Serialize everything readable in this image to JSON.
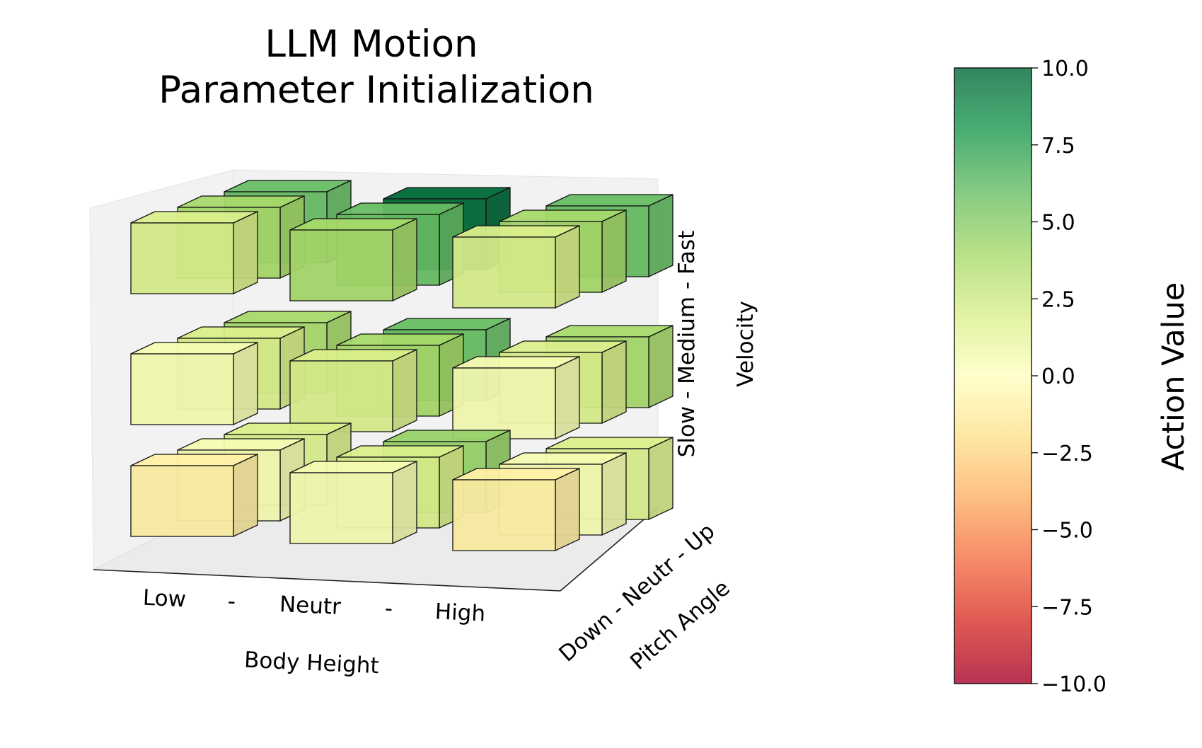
{
  "chart_data": {
    "type": "3d-bar",
    "title": [
      "LLM Motion",
      "Parameter Initialization"
    ],
    "x_axis": {
      "label": "Body Height",
      "categories": [
        "Low",
        "Neutr",
        "High"
      ],
      "separators": [
        "-",
        "-"
      ]
    },
    "y_axis": {
      "label": "Pitch Angle",
      "tick_text": "Down - Neutr - Up",
      "categories": [
        "Down",
        "Neutr",
        "Up"
      ]
    },
    "z_axis": {
      "label": "Velocity",
      "tick_text": "Slow  -  Medium  -  Fast",
      "categories": [
        "Slow",
        "Medium",
        "Fast"
      ]
    },
    "colorbar": {
      "label": "Action Value",
      "range": [
        -10,
        10
      ],
      "ticks": [
        "10.0",
        "7.5",
        "5.0",
        "2.5",
        "0.0",
        "−2.5",
        "−5.0",
        "−7.5",
        "−10.0"
      ],
      "colormap": "RdYlGn",
      "colors": [
        "#a50026",
        "#d73027",
        "#f46d43",
        "#fdae61",
        "#fee08b",
        "#ffffbf",
        "#d9ef8b",
        "#a6d96a",
        "#66bd63",
        "#1a9850",
        "#006837"
      ]
    },
    "values": [
      {
        "velocity": "Slow",
        "pitch": "Down",
        "height": "Low",
        "value": -1.0
      },
      {
        "velocity": "Slow",
        "pitch": "Down",
        "height": "Neutr",
        "value": 0.5
      },
      {
        "velocity": "Slow",
        "pitch": "Down",
        "height": "High",
        "value": -1.0
      },
      {
        "velocity": "Slow",
        "pitch": "Neutr",
        "height": "Low",
        "value": 0.5
      },
      {
        "velocity": "Slow",
        "pitch": "Neutr",
        "height": "Neutr",
        "value": 2.0
      },
      {
        "velocity": "Slow",
        "pitch": "Neutr",
        "height": "High",
        "value": 0.5
      },
      {
        "velocity": "Slow",
        "pitch": "Up",
        "height": "Low",
        "value": 2.0
      },
      {
        "velocity": "Slow",
        "pitch": "Up",
        "height": "Neutr",
        "value": 4.5
      },
      {
        "velocity": "Slow",
        "pitch": "Up",
        "height": "High",
        "value": 2.0
      },
      {
        "velocity": "Medium",
        "pitch": "Down",
        "height": "Low",
        "value": 0.5
      },
      {
        "velocity": "Medium",
        "pitch": "Down",
        "height": "Neutr",
        "value": 2.0
      },
      {
        "velocity": "Medium",
        "pitch": "Down",
        "height": "High",
        "value": 0.5
      },
      {
        "velocity": "Medium",
        "pitch": "Neutr",
        "height": "Low",
        "value": 2.0
      },
      {
        "velocity": "Medium",
        "pitch": "Neutr",
        "height": "Neutr",
        "value": 4.0
      },
      {
        "velocity": "Medium",
        "pitch": "Neutr",
        "height": "High",
        "value": 2.0
      },
      {
        "velocity": "Medium",
        "pitch": "Up",
        "height": "Low",
        "value": 4.0
      },
      {
        "velocity": "Medium",
        "pitch": "Up",
        "height": "Neutr",
        "value": 6.0
      },
      {
        "velocity": "Medium",
        "pitch": "Up",
        "height": "High",
        "value": 4.0
      },
      {
        "velocity": "Fast",
        "pitch": "Down",
        "height": "Low",
        "value": 2.0
      },
      {
        "velocity": "Fast",
        "pitch": "Down",
        "height": "Neutr",
        "value": 4.0
      },
      {
        "velocity": "Fast",
        "pitch": "Down",
        "height": "High",
        "value": 2.0
      },
      {
        "velocity": "Fast",
        "pitch": "Neutr",
        "height": "Low",
        "value": 4.0
      },
      {
        "velocity": "Fast",
        "pitch": "Neutr",
        "height": "Neutr",
        "value": 6.0
      },
      {
        "velocity": "Fast",
        "pitch": "Neutr",
        "height": "High",
        "value": 4.0
      },
      {
        "velocity": "Fast",
        "pitch": "Up",
        "height": "Low",
        "value": 6.0
      },
      {
        "velocity": "Fast",
        "pitch": "Up",
        "height": "Neutr",
        "value": 10.0
      },
      {
        "velocity": "Fast",
        "pitch": "Up",
        "height": "High",
        "value": 6.0
      }
    ]
  }
}
